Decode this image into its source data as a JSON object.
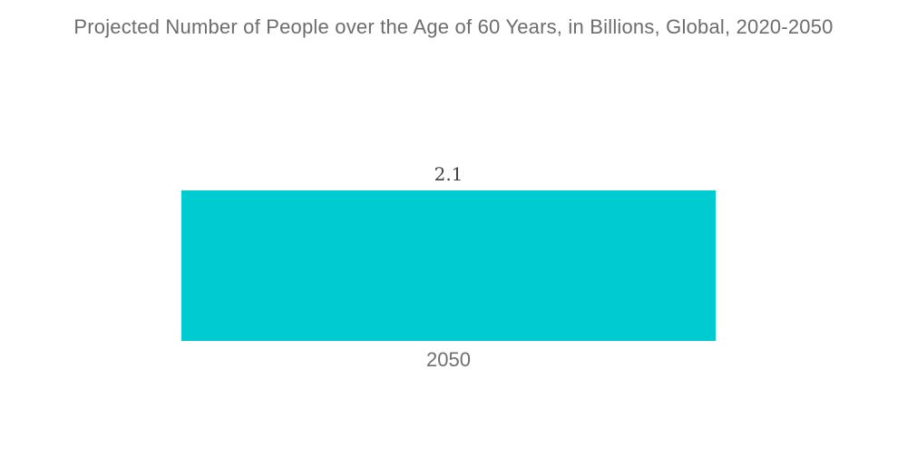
{
  "colors": {
    "background": "#FFFFFF",
    "bar": "#00CBD1",
    "title_text": "#6D6D6D",
    "value_text": "#404040",
    "category_text": "#6F6F6F"
  },
  "chart_data": {
    "type": "bar",
    "title": "Projected Number of People over the Age of 60 Years, in Billions, Global, 2020-2050",
    "categories": [
      "2050"
    ],
    "values": [
      2.1
    ],
    "value_labels": [
      "2.1"
    ],
    "xlabel": "",
    "ylabel": "",
    "ylim": [
      0,
      2.1
    ],
    "grid": false,
    "legend": "none",
    "orientation": "vertical",
    "axes_shown": false,
    "bar_color": "#00CBD1"
  }
}
